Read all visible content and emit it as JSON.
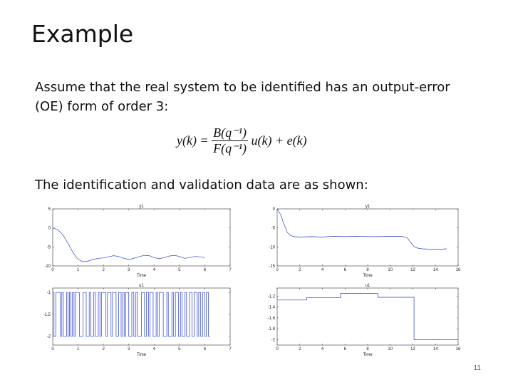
{
  "slide": {
    "title": "Example",
    "paragraph1": "Assume that the real system to be identified has an output-error (OE) form of order 3:",
    "equation": {
      "lhs": "y(k) =",
      "numerator": "B(q⁻¹)",
      "denominator": "F(q⁻¹)",
      "rhs": "u(k) + e(k)"
    },
    "paragraph2": "The identification and validation data are as shown:",
    "page_number": "11"
  },
  "chart_data": [
    {
      "type": "line",
      "title": "y1",
      "xlabel": "Time",
      "xlim": [
        0,
        7
      ],
      "ylim": [
        -10,
        5
      ],
      "xticks": [
        "0",
        "1",
        "2",
        "3",
        "4",
        "5",
        "6",
        "7"
      ],
      "yticks": [
        "5",
        "0",
        "-5",
        "-10"
      ],
      "x": [
        0,
        0.2,
        0.4,
        0.6,
        0.8,
        1.0,
        1.2,
        1.4,
        1.6,
        1.8,
        2.0,
        2.2,
        2.4,
        2.6,
        2.8,
        3.0,
        3.2,
        3.4,
        3.6,
        3.8,
        4.0,
        4.2,
        4.4,
        4.6,
        4.8,
        5.0,
        5.2,
        5.4,
        5.6,
        5.8,
        6.0
      ],
      "y": [
        0,
        -0.5,
        -1.8,
        -4,
        -6.5,
        -8.3,
        -8.9,
        -8.7,
        -8.3,
        -8.0,
        -7.9,
        -7.6,
        -7.3,
        -7.5,
        -8.0,
        -8.3,
        -8.0,
        -7.6,
        -7.2,
        -7.3,
        -7.8,
        -8.1,
        -7.8,
        -7.4,
        -7.2,
        -7.5,
        -8.0,
        -7.8,
        -7.5,
        -7.6,
        -7.8
      ]
    },
    {
      "type": "line",
      "title": "y1",
      "xlabel": "Time",
      "xlim": [
        0,
        16
      ],
      "ylim": [
        -15,
        0
      ],
      "xticks": [
        "0",
        "2",
        "4",
        "6",
        "8",
        "10",
        "12",
        "14",
        "16"
      ],
      "yticks": [
        "0",
        "-5",
        "-10",
        "-15"
      ],
      "x": [
        0,
        0.3,
        0.6,
        0.9,
        1.2,
        1.5,
        2,
        3,
        4,
        5,
        6,
        7,
        8,
        9,
        10,
        11,
        11.5,
        11.8,
        12.1,
        12.4,
        12.8,
        13.5,
        14.5,
        15
      ],
      "y": [
        0,
        -1.5,
        -4,
        -6.2,
        -7.0,
        -7.3,
        -7.4,
        -7.3,
        -7.4,
        -7.2,
        -7.3,
        -7.2,
        -7.3,
        -7.3,
        -7.2,
        -7.2,
        -7.6,
        -8.8,
        -9.9,
        -10.3,
        -10.5,
        -10.6,
        -10.6,
        -10.5
      ]
    },
    {
      "type": "line",
      "title": "u1",
      "xlabel": "Time",
      "xlim": [
        0,
        7
      ],
      "ylim": [
        -2.2,
        -0.9
      ],
      "xticks": [
        "0",
        "1",
        "2",
        "3",
        "4",
        "5",
        "6",
        "7"
      ],
      "yticks": [
        "-1",
        "-1.5",
        "-2"
      ],
      "levels": [
        -1,
        -2
      ],
      "switch_times": [
        0.05,
        0.12,
        0.3,
        0.36,
        0.42,
        0.55,
        0.6,
        0.66,
        0.72,
        0.78,
        0.84,
        0.9,
        1.05,
        1.2,
        1.32,
        1.44,
        1.5,
        1.62,
        1.68,
        1.8,
        1.86,
        1.92,
        2.1,
        2.16,
        2.3,
        2.36,
        2.5,
        2.6,
        2.7,
        2.76,
        2.82,
        2.88,
        3.0,
        3.12,
        3.2,
        3.28,
        3.34,
        3.5,
        3.62,
        3.7,
        3.78,
        3.84,
        3.96,
        4.08,
        4.14,
        4.2,
        4.36,
        4.5,
        4.56,
        4.7,
        4.76,
        4.84,
        4.96,
        5.04,
        5.1,
        5.22,
        5.28,
        5.4,
        5.5,
        5.58,
        5.7,
        5.76,
        5.84,
        5.92,
        6.0,
        6.06,
        6.14
      ]
    },
    {
      "type": "line",
      "title": "u1",
      "xlabel": "Time",
      "xlim": [
        0,
        16
      ],
      "ylim": [
        -2.1,
        -1.05
      ],
      "xticks": [
        "0",
        "2",
        "4",
        "6",
        "8",
        "10",
        "12",
        "14",
        "16"
      ],
      "yticks": [
        "-1.2",
        "-1.4",
        "-1.6",
        "-1.8",
        "-2"
      ],
      "x": [
        0,
        2.6,
        2.6,
        5.6,
        5.6,
        8.9,
        8.9,
        12.1,
        12.1,
        16
      ],
      "y": [
        -1.27,
        -1.27,
        -1.23,
        -1.23,
        -1.15,
        -1.15,
        -1.22,
        -1.22,
        -2.0,
        -2.0
      ]
    }
  ]
}
